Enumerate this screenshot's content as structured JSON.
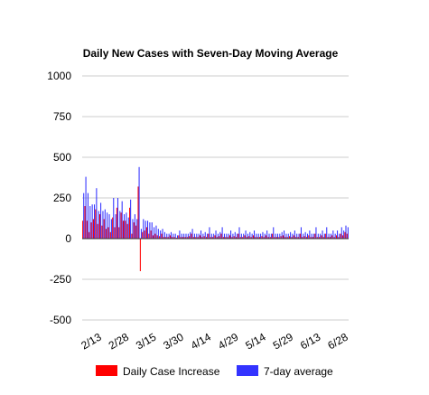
{
  "chart_data": {
    "type": "bar",
    "title": "Daily New Cases with Seven-Day Moving Average",
    "xlabel": "",
    "ylabel": "",
    "ylim": [
      -500,
      1000
    ],
    "yticks": [
      1000,
      750,
      500,
      250,
      0,
      -250,
      -500
    ],
    "xtick_labels": [
      "2/13",
      "2/28",
      "3/15",
      "3/30",
      "4/14",
      "4/29",
      "5/14",
      "5/29",
      "6/13",
      "6/28"
    ],
    "grid": true,
    "legend_position": "bottom",
    "colors": {
      "daily": "#ff0000",
      "avg": "#3333ff"
    },
    "series": [
      {
        "name": "Daily Case Increase",
        "values": [
          110,
          200,
          110,
          40,
          100,
          120,
          180,
          90,
          150,
          80,
          120,
          60,
          70,
          40,
          130,
          70,
          190,
          70,
          160,
          110,
          110,
          90,
          190,
          30,
          100,
          80,
          320,
          -200,
          40,
          50,
          70,
          30,
          50,
          20,
          30,
          20,
          15,
          30,
          10,
          10,
          10,
          20,
          10,
          10,
          5,
          20,
          10,
          10,
          10,
          10,
          15,
          30,
          10,
          10,
          10,
          20,
          10,
          15,
          10,
          30,
          10,
          10,
          20,
          10,
          15,
          30,
          10,
          10,
          10,
          20,
          10,
          15,
          10,
          30,
          10,
          10,
          20,
          10,
          15,
          10,
          20,
          10,
          10,
          10,
          15,
          10,
          20,
          10,
          10,
          30,
          10,
          10,
          10,
          15,
          20,
          10,
          10,
          15,
          10,
          20,
          10,
          10,
          30,
          10,
          15,
          10,
          20,
          10,
          10,
          30,
          10,
          10,
          20,
          10,
          30,
          10,
          10,
          20,
          10,
          20,
          10,
          30,
          20,
          40,
          30
        ]
      },
      {
        "name": "7-day average",
        "values": [
          280,
          380,
          280,
          200,
          210,
          210,
          310,
          170,
          220,
          170,
          180,
          160,
          150,
          120,
          250,
          150,
          250,
          170,
          230,
          150,
          160,
          130,
          240,
          120,
          150,
          120,
          440,
          60,
          120,
          110,
          110,
          100,
          100,
          70,
          80,
          60,
          50,
          60,
          40,
          30,
          30,
          40,
          30,
          30,
          20,
          50,
          30,
          30,
          30,
          30,
          40,
          60,
          30,
          30,
          30,
          50,
          30,
          40,
          30,
          70,
          30,
          30,
          50,
          30,
          40,
          70,
          30,
          30,
          30,
          50,
          30,
          40,
          30,
          70,
          30,
          30,
          50,
          30,
          40,
          30,
          50,
          30,
          30,
          30,
          40,
          30,
          50,
          30,
          30,
          70,
          30,
          30,
          30,
          40,
          50,
          30,
          30,
          40,
          30,
          50,
          30,
          30,
          70,
          30,
          40,
          30,
          50,
          30,
          30,
          70,
          30,
          30,
          50,
          30,
          70,
          30,
          30,
          50,
          30,
          50,
          30,
          70,
          50,
          80,
          70
        ]
      }
    ]
  }
}
